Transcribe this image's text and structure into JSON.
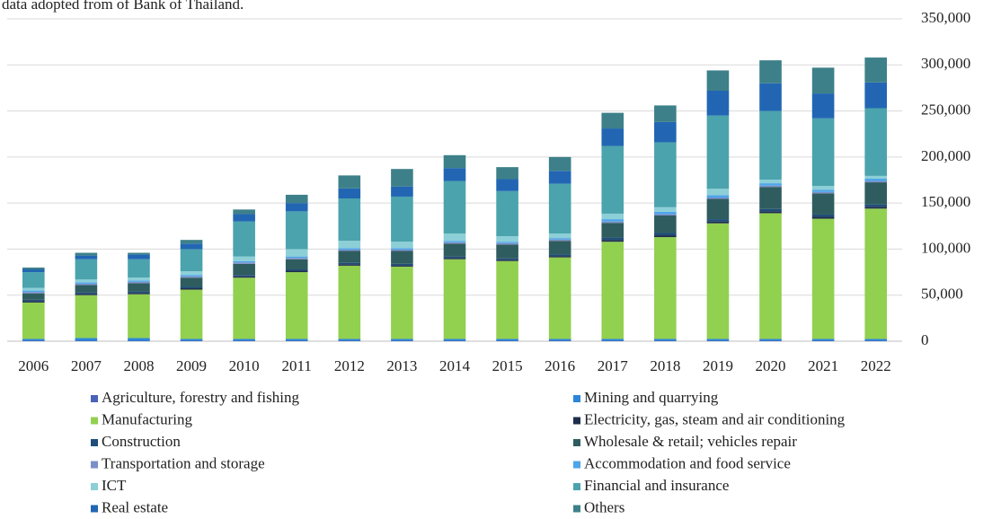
{
  "chart_data": {
    "type": "stacked_bar",
    "note": "data adopted from of Bank of Thailand.",
    "categories": [
      "2006",
      "2007",
      "2008",
      "2009",
      "2010",
      "2011",
      "2012",
      "2013",
      "2014",
      "2015",
      "2016",
      "2017",
      "2018",
      "2019",
      "2020",
      "2021",
      "2022"
    ],
    "series": [
      {
        "name": "Agriculture, forestry and fishing",
        "color": "#4a63b8",
        "values": [
          500,
          500,
          500,
          500,
          500,
          500,
          500,
          500,
          500,
          500,
          500,
          500,
          500,
          500,
          500,
          500,
          500
        ]
      },
      {
        "name": "Mining and quarrying",
        "color": "#2e86d8",
        "values": [
          2000,
          3000,
          3000,
          2000,
          2000,
          2000,
          2000,
          2000,
          2000,
          2000,
          2000,
          2000,
          2000,
          2000,
          2000,
          2000,
          2000
        ]
      },
      {
        "name": "Manufacturing",
        "color": "#92d050",
        "values": [
          39500,
          46500,
          47500,
          53500,
          66500,
          72500,
          79500,
          78500,
          86500,
          84500,
          88500,
          105500,
          110500,
          125500,
          136500,
          130500,
          141500
        ]
      },
      {
        "name": "Electricity, gas, steam and air conditioning",
        "color": "#1f2d4d",
        "values": [
          1500,
          1500,
          1500,
          1500,
          1500,
          1500,
          1500,
          1500,
          1500,
          1500,
          1500,
          2000,
          2000,
          2000,
          2000,
          2000,
          2000
        ]
      },
      {
        "name": "Construction",
        "color": "#1f4e79",
        "values": [
          1500,
          1500,
          1500,
          1500,
          1500,
          1500,
          1500,
          1500,
          1500,
          1500,
          1500,
          2500,
          2500,
          2500,
          2500,
          2500,
          2500
        ]
      },
      {
        "name": "Wholesale & retail; vehicles repair",
        "color": "#2f5d5f",
        "values": [
          7000,
          8000,
          9000,
          10000,
          12000,
          11000,
          13000,
          14000,
          14000,
          15000,
          15000,
          16000,
          19000,
          22000,
          24000,
          23000,
          24000
        ]
      },
      {
        "name": "Transportation and storage",
        "color": "#7b8fc8",
        "values": [
          1500,
          1500,
          1500,
          1500,
          1500,
          1500,
          1500,
          1500,
          1500,
          1500,
          1500,
          1500,
          1500,
          1500,
          1500,
          1500,
          1500
        ]
      },
      {
        "name": "Accommodation and food service",
        "color": "#4da6e8",
        "values": [
          1500,
          1500,
          1500,
          1500,
          1500,
          1500,
          1500,
          1500,
          1500,
          1500,
          1500,
          2500,
          2500,
          2500,
          2500,
          2500,
          2500
        ]
      },
      {
        "name": "ICT",
        "color": "#8ccfd6",
        "values": [
          3000,
          3000,
          3000,
          4000,
          5000,
          8000,
          8000,
          7000,
          8000,
          6000,
          5000,
          6000,
          5000,
          7000,
          4000,
          4000,
          3000
        ]
      },
      {
        "name": "Financial and insurance",
        "color": "#4ba3ad",
        "values": [
          17000,
          22000,
          20000,
          24000,
          38000,
          41000,
          46000,
          49000,
          57000,
          49000,
          54000,
          73500,
          70500,
          79500,
          74500,
          73500,
          73500
        ]
      },
      {
        "name": "Real estate",
        "color": "#2266b3",
        "values": [
          3000,
          4000,
          5000,
          6000,
          8000,
          9000,
          11000,
          11000,
          14000,
          13000,
          14000,
          19000,
          22000,
          27000,
          30000,
          27000,
          28000
        ]
      },
      {
        "name": "Others",
        "color": "#3d8089",
        "values": [
          2000,
          3000,
          2000,
          4000,
          5000,
          9000,
          14000,
          19000,
          14000,
          13000,
          15000,
          17000,
          18000,
          22000,
          25000,
          28000,
          27000
        ]
      }
    ],
    "ylim": [
      0,
      350000
    ],
    "yticks": [
      0,
      {
        "value": 50000,
        "label": "50,000"
      },
      {
        "value": 100000,
        "label": "100,000"
      },
      {
        "value": 150000,
        "label": "150,000"
      },
      {
        "value": 200000,
        "label": "200,000"
      },
      {
        "value": 250000,
        "label": "250,000"
      },
      {
        "value": 300000,
        "label": "300,000"
      },
      {
        "value": 350000,
        "label": "350,000"
      }
    ],
    "grid": true,
    "y_axis_side": "right",
    "legend": "bottom"
  }
}
